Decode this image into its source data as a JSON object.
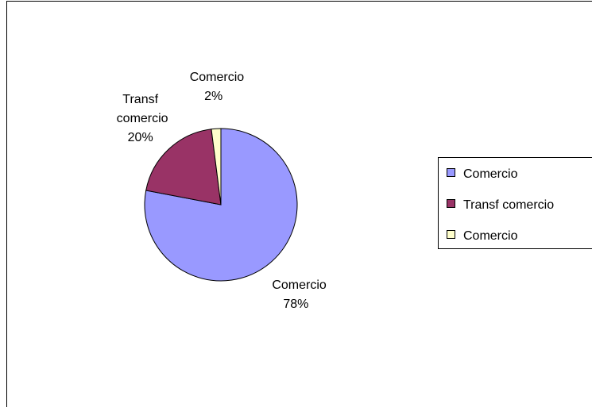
{
  "chart_data": {
    "type": "pie",
    "categories": [
      "Comercio",
      "Transf comercio",
      "Comercio"
    ],
    "values": [
      78,
      20,
      2
    ],
    "value_labels": [
      "78%",
      "20%",
      "2%"
    ],
    "colors": [
      "#9999ff",
      "#993366",
      "#ffffcc"
    ],
    "legend": "right"
  }
}
